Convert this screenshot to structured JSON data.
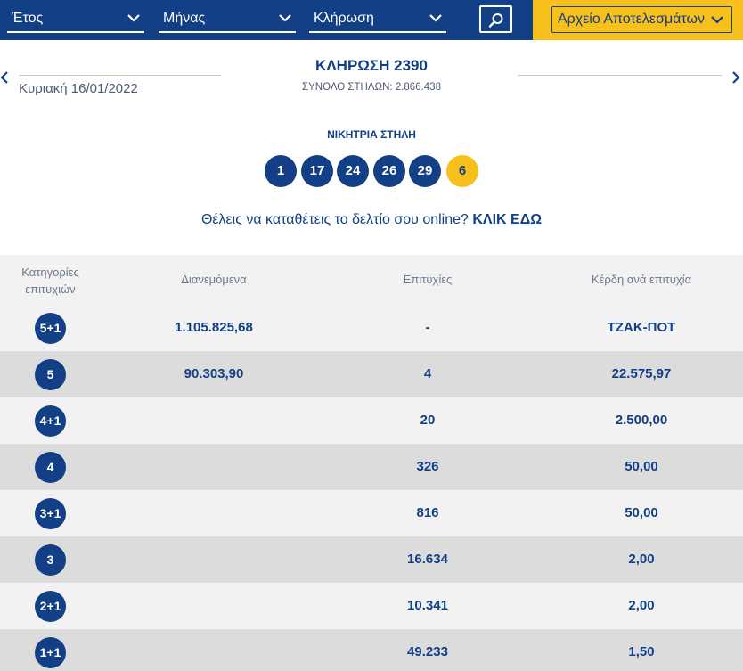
{
  "filters": {
    "year_label": "Έτος",
    "month_label": "Μήνας",
    "draw_label": "Κλήρωση",
    "archive_label": "Αρχείο Αποτελεσμάτων"
  },
  "draw": {
    "date": "Κυριακή 16/01/2022",
    "title": "ΚΛΗΡΩΣΗ 2390",
    "total_columns": "ΣΥΝΟΛΟ ΣΤΗΛΩΝ: 2.866.438"
  },
  "winning": {
    "title": "ΝΙΚΗΤΡΙΑ ΣΤΗΛΗ",
    "numbers": [
      "1",
      "17",
      "24",
      "26",
      "29"
    ],
    "joker": "6"
  },
  "online": {
    "text": "Θέλεις να καταθέτεις το δελτίο σου online?",
    "link": "ΚΛΙΚ ΕΔΩ"
  },
  "table": {
    "headers": {
      "category_line1": "Κατηγορίες",
      "category_line2": "επιτυχιών",
      "distributed": "Διανεμόμενα",
      "winners": "Επιτυχίες",
      "prize": "Κέρδη ανά επιτυχία"
    },
    "rows": [
      {
        "cat": "5+1",
        "dist": "1.105.825,68",
        "win": "-",
        "prize": "ΤΖΑΚ-ΠΟΤ"
      },
      {
        "cat": "5",
        "dist": "90.303,90",
        "win": "4",
        "prize": "22.575,97"
      },
      {
        "cat": "4+1",
        "dist": "",
        "win": "20",
        "prize": "2.500,00"
      },
      {
        "cat": "4",
        "dist": "",
        "win": "326",
        "prize": "50,00"
      },
      {
        "cat": "3+1",
        "dist": "",
        "win": "816",
        "prize": "50,00"
      },
      {
        "cat": "3",
        "dist": "",
        "win": "16.634",
        "prize": "2,00"
      },
      {
        "cat": "2+1",
        "dist": "",
        "win": "10.341",
        "prize": "2,00"
      },
      {
        "cat": "1+1",
        "dist": "",
        "win": "49.233",
        "prize": "1,50"
      }
    ]
  },
  "colors": {
    "primary": "#123f86",
    "accent": "#f7c01a",
    "row_light": "#f2f2f2",
    "row_dark": "#dcdcdc"
  }
}
